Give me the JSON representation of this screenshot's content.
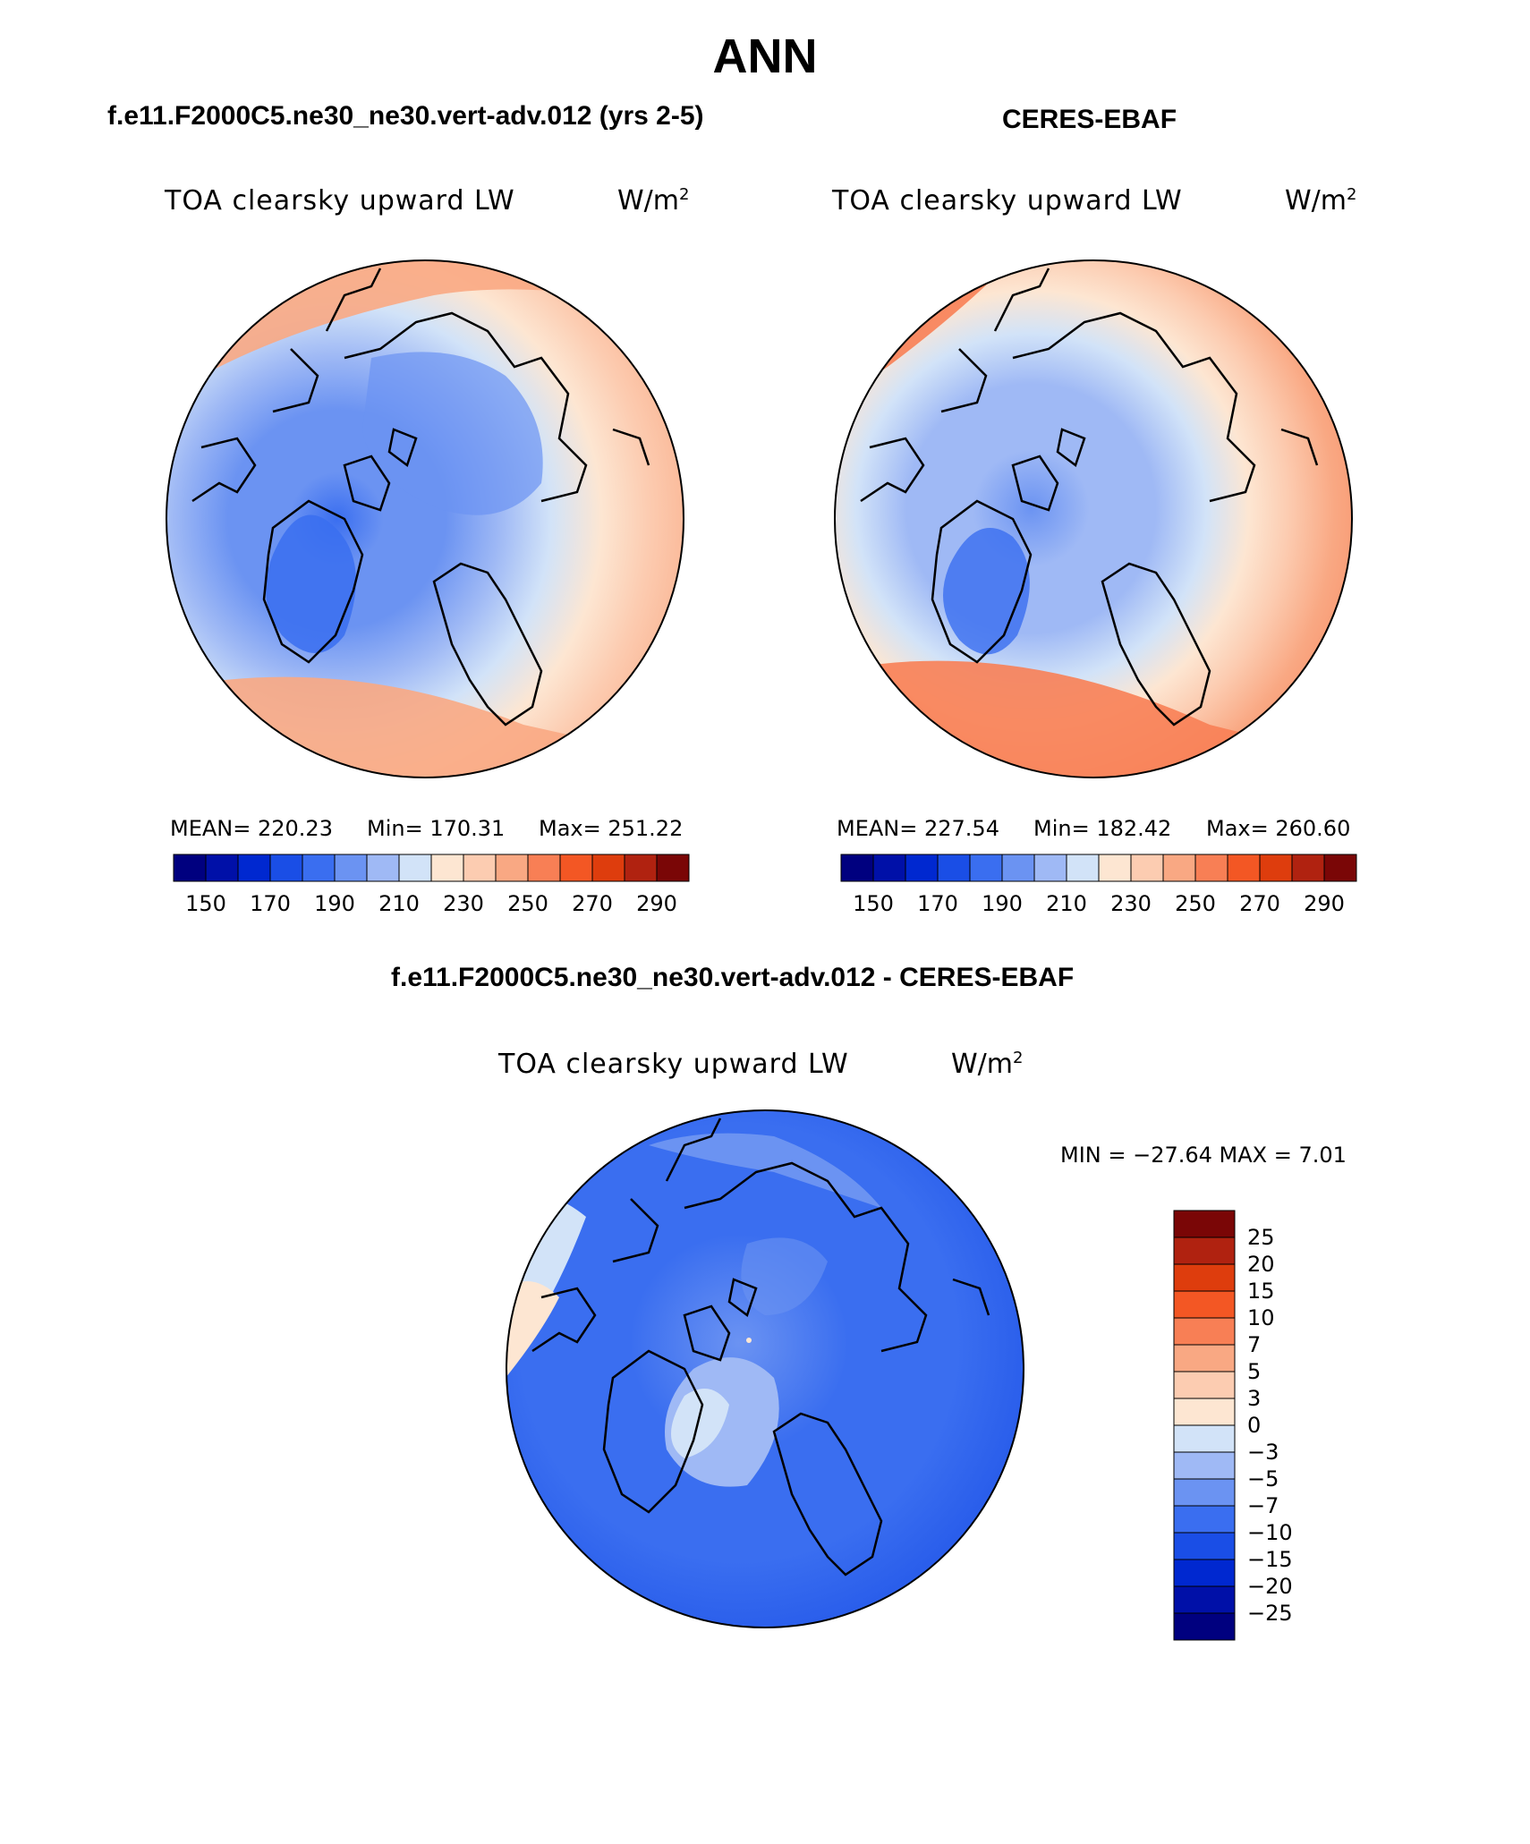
{
  "title": "ANN",
  "colors": {
    "scale_16": [
      "#00007f",
      "#0010a8",
      "#0028d0",
      "#1a4ee6",
      "#3a6ef0",
      "#6b93f2",
      "#9fb9f5",
      "#d2e3f8",
      "#fde6d2",
      "#fcccb1",
      "#f9a883",
      "#f87f55",
      "#f35724",
      "#de3d0d",
      "#b02210",
      "#7a0606"
    ],
    "diff_scale": [
      "#00007f",
      "#0010a8",
      "#0028d0",
      "#1a4ee6",
      "#3a6ef0",
      "#6b93f2",
      "#9fb9f5",
      "#d2e3f8",
      "#fde6d2",
      "#fcccb1",
      "#f9a883",
      "#f87f55",
      "#f35724",
      "#de3d0d",
      "#b02210",
      "#7a0606"
    ]
  },
  "panels": [
    {
      "case": "f.e11.F2000C5.ne30_ne30.vert-adv.012 (yrs 2-5)",
      "label": "TOA clearsky upward LW",
      "units": "W/m",
      "units_sup": "2",
      "mean": "MEAN= 220.23",
      "min": "Min= 170.31",
      "max": "Max= 251.22",
      "ticks": [
        "150",
        "170",
        "190",
        "210",
        "230",
        "250",
        "270",
        "290"
      ]
    },
    {
      "case": "CERES-EBAF",
      "label": "TOA clearsky upward LW",
      "units": "W/m",
      "units_sup": "2",
      "mean": "MEAN= 227.54",
      "min": "Min= 182.42",
      "max": "Max= 260.60",
      "ticks": [
        "150",
        "170",
        "190",
        "210",
        "230",
        "250",
        "270",
        "290"
      ]
    }
  ],
  "diff": {
    "case": "f.e11.F2000C5.ne30_ne30.vert-adv.012 - CERES-EBAF",
    "label": "TOA clearsky upward LW",
    "units": "W/m",
    "units_sup": "2",
    "minmax": "MIN = −27.64 MAX =    7.01",
    "ticks": [
      "25",
      "20",
      "15",
      "10",
      "7",
      "5",
      "3",
      "0",
      "−3",
      "−5",
      "−7",
      "−10",
      "−15",
      "−20",
      "−25"
    ]
  }
}
